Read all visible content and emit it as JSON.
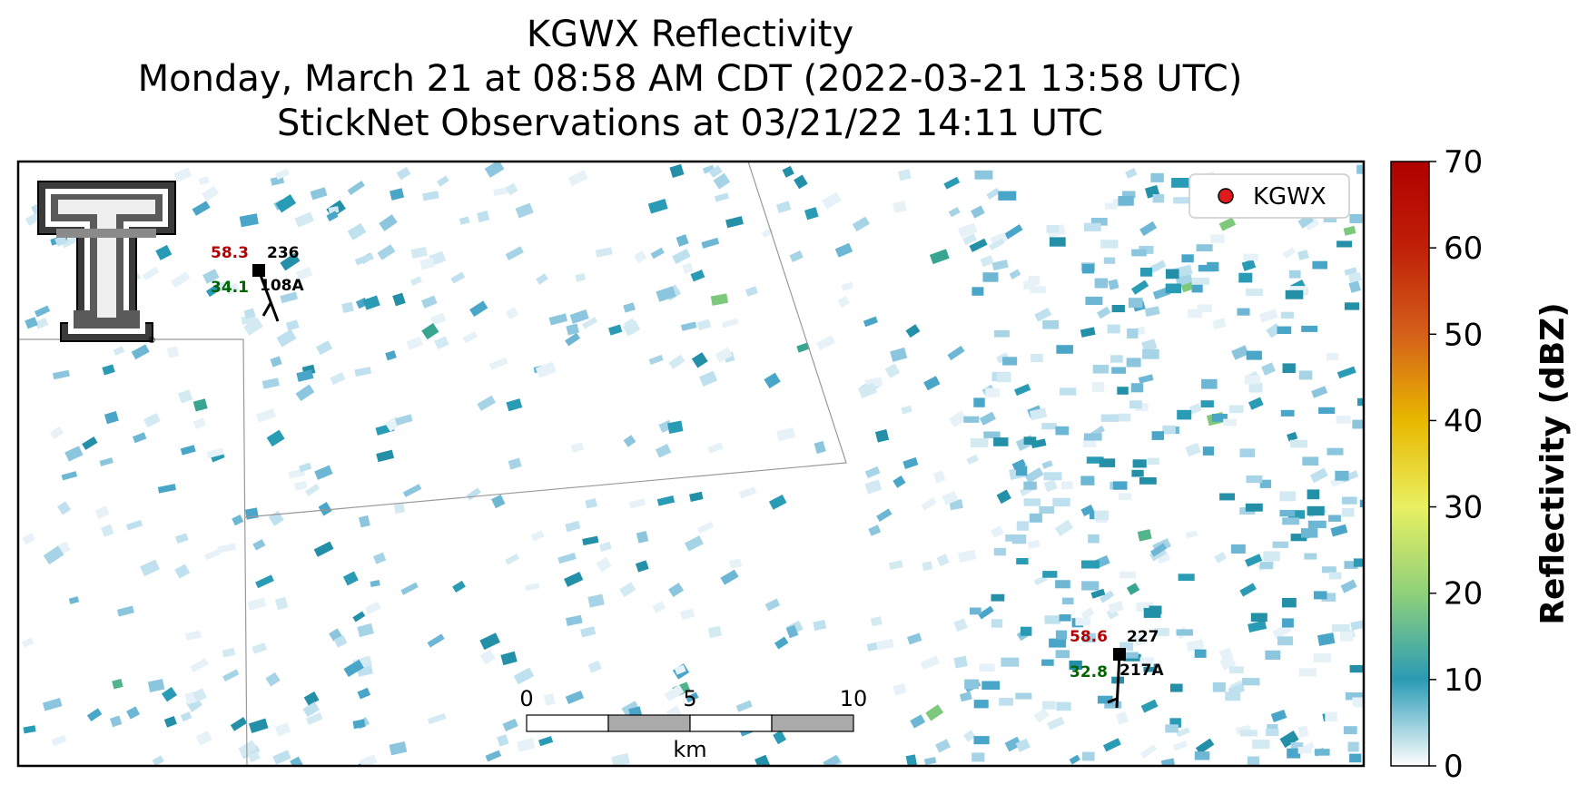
{
  "title": {
    "line1": "KGWX Reflectivity",
    "line2": "Monday, March 21 at 08:58 AM CDT (2022-03-21 13:58 UTC)",
    "line3": "StickNet Observations at 03/21/22 14:11 UTC"
  },
  "legend": {
    "label": "KGWX",
    "marker_color": "#e31a1c"
  },
  "logo": {
    "name": "texas-tech-double-t-logo",
    "registered_mark": "®"
  },
  "stations": [
    {
      "id": "108A",
      "temperature": "58.3",
      "dewpoint": "34.1",
      "wind_dir": "236"
    },
    {
      "id": "217A",
      "temperature": "58.6",
      "dewpoint": "32.8",
      "wind_dir": "227"
    }
  ],
  "scalebar": {
    "ticks": [
      "0",
      "5",
      "10"
    ],
    "unit": "km"
  },
  "colorbar": {
    "label": "Reflectivity (dBZ)",
    "ticks": [
      "0",
      "10",
      "20",
      "30",
      "40",
      "50",
      "60",
      "70"
    ],
    "min": 0,
    "max": 70,
    "colors": [
      "#ffffff",
      "#2a9bb5",
      "#8fd17a",
      "#e8f060",
      "#e8b800",
      "#d4601a",
      "#b00000"
    ]
  },
  "colors": {
    "temperature": "#b30000",
    "dewpoint": "#006400",
    "station_id": "#000000"
  }
}
